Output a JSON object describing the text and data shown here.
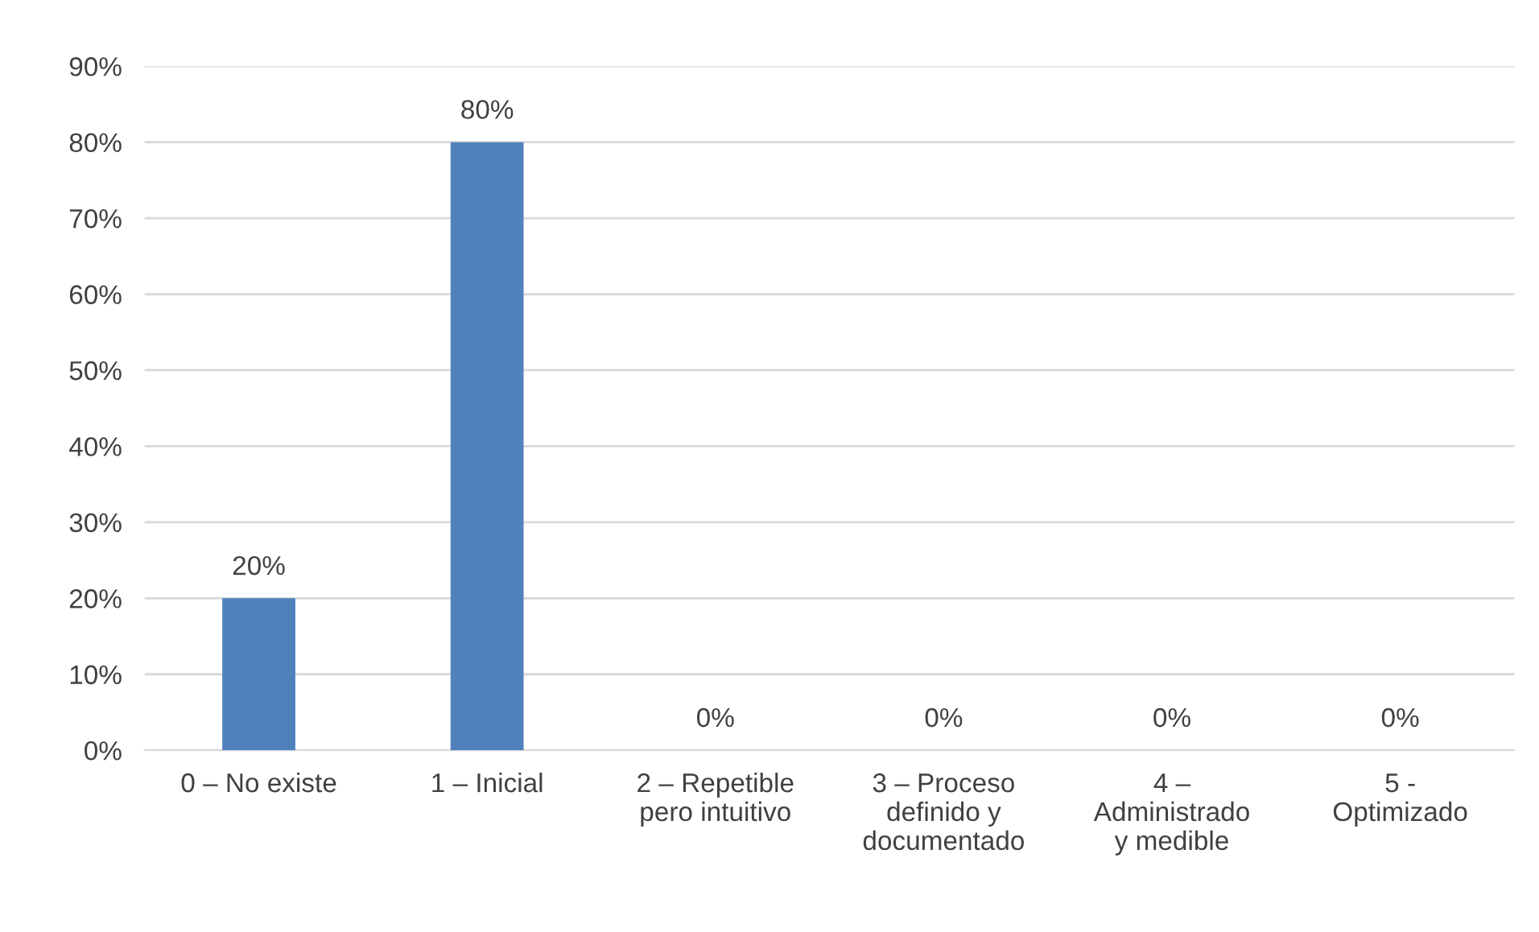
{
  "chart_data": {
    "type": "bar",
    "categories": [
      "0 – No existe",
      "1 – Inicial",
      "2 – Repetible\npero intuitivo",
      "3 – Proceso\ndefinido y\ndocumentado",
      "4 –\nAdministrado\ny medible",
      "5 -\nOptimizado"
    ],
    "values": [
      20,
      80,
      0,
      0,
      0,
      0
    ],
    "value_labels": [
      "20%",
      "80%",
      "0%",
      "0%",
      "0%",
      "0%"
    ],
    "color": "#4f81bd",
    "ylim": [
      0,
      90
    ],
    "yticks": [
      {
        "value": 0,
        "label": "0%"
      },
      {
        "value": 10,
        "label": "10%"
      },
      {
        "value": 20,
        "label": "20%"
      },
      {
        "value": 30,
        "label": "30%"
      },
      {
        "value": 40,
        "label": "40%"
      },
      {
        "value": 50,
        "label": "50%"
      },
      {
        "value": 60,
        "label": "60%"
      },
      {
        "value": 70,
        "label": "70%"
      },
      {
        "value": 80,
        "label": "80%"
      },
      {
        "value": 90,
        "label": "90%"
      }
    ],
    "grid": "y",
    "legend": false
  }
}
